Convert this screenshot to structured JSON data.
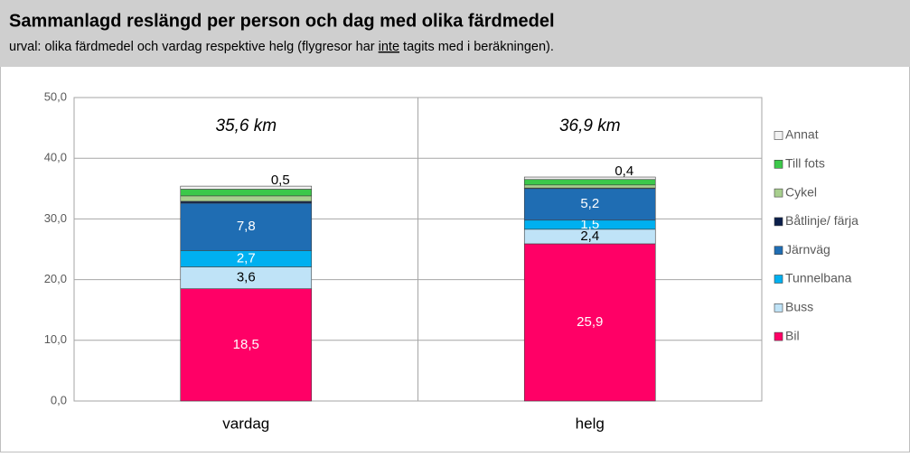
{
  "chart_data": {
    "type": "stacked-bar",
    "title": "Sammanlagd reslängd per person och dag med olika färdmedel",
    "subtitle": [
      "urval: olika färdmedel och vardag respektive helg (flygresor har ",
      "inte",
      " tagits med i beräkningen)."
    ],
    "annotations": [
      "35,6 km",
      "36,9 km"
    ],
    "categories": [
      "vardag",
      "helg"
    ],
    "series": [
      {
        "name": "Bil",
        "color": "#ff0066",
        "values": [
          18.5,
          25.9
        ],
        "value_labels": [
          "18,5",
          "25,9"
        ]
      },
      {
        "name": "Buss",
        "color": "#bfe3f7",
        "values": [
          3.6,
          2.4
        ],
        "value_labels": [
          "3,6",
          "2,4"
        ]
      },
      {
        "name": "Tunnelbana",
        "color": "#00b0f0",
        "values": [
          2.7,
          1.5
        ],
        "value_labels": [
          "2,7",
          "1,5"
        ]
      },
      {
        "name": "Järnväg",
        "color": "#1f6db3",
        "values": [
          7.8,
          5.2
        ],
        "value_labels": [
          "7,8",
          "5,2"
        ]
      },
      {
        "name": "Båtlinje/ färja",
        "color": "#0b1f4b",
        "values": [
          0.3,
          0.1
        ],
        "value_labels": [
          "0,3",
          "0,1"
        ]
      },
      {
        "name": "Cykel",
        "color": "#a8cf8e",
        "values": [
          0.9,
          0.5
        ],
        "value_labels": [
          "0,9",
          "0,5"
        ]
      },
      {
        "name": "Till fots",
        "color": "#3cc84a",
        "values": [
          1.1,
          0.9
        ],
        "value_labels": [
          "1,1",
          "0,9"
        ]
      },
      {
        "name": "Annat",
        "color": "#f2f2f2",
        "values": [
          0.5,
          0.4
        ],
        "value_labels": [
          "0,5",
          "0,4"
        ]
      }
    ],
    "ylim": [
      0,
      50
    ],
    "yticks": [
      {
        "value": 0,
        "label": "0,0"
      },
      {
        "value": 10,
        "label": "10,0"
      },
      {
        "value": 20,
        "label": "20,0"
      },
      {
        "value": 30,
        "label": "30,0"
      },
      {
        "value": 40,
        "label": "40,0"
      },
      {
        "value": 50,
        "label": "50,0"
      }
    ],
    "grid": true,
    "legend": "right"
  }
}
